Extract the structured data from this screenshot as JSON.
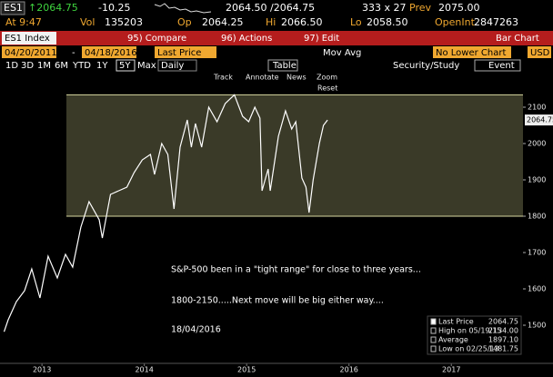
{
  "header": {
    "row1": {
      "ticker": "ES1",
      "last": "↑2064.75",
      "change": "-10.25",
      "bid_ask": "2064.50 /2064.75",
      "size": "333 x 27",
      "prev_label": "Prev",
      "prev": "2075.00"
    },
    "row2": {
      "time": "At 9:47",
      "vol_label": "Vol",
      "vol": "135203",
      "op_label": "Op",
      "op": "2064.25",
      "hi_label": "Hi",
      "hi": "2066.50",
      "lo_label": "Lo",
      "lo": "2058.50",
      "oi_label": "OpenInt",
      "oi": "2847263"
    },
    "menu": {
      "security": "ES1 Index",
      "compare": "95) Compare",
      "actions": "96) Actions",
      "edit": "97) Edit",
      "view": "Bar Chart"
    },
    "controls": {
      "start": "04/20/2011",
      "dash": "-",
      "end": "04/18/2016",
      "field": "Last Price",
      "study": "Mov Avg",
      "lower": "No Lower Chart",
      "currency": "USD"
    },
    "periods": [
      "1D",
      "3D",
      "1M",
      "6M",
      "YTD",
      "1Y",
      "5Y",
      "Max",
      "Daily"
    ],
    "tools": {
      "table": "Table",
      "security_study": "Security/Study",
      "event": "Event"
    },
    "chart_tools": {
      "track": "Track",
      "annotate": "Annotate",
      "news": "News",
      "zoom": "Zoom",
      "reset": "Reset"
    }
  },
  "chart_data": {
    "type": "line",
    "x": [
      2013.13,
      2013.17,
      2013.25,
      2013.33,
      2013.4,
      2013.48,
      2013.56,
      2013.65,
      2013.73,
      2013.8,
      2013.88,
      2013.96,
      2014.06,
      2014.09,
      2014.17,
      2014.25,
      2014.33,
      2014.4,
      2014.48,
      2014.56,
      2014.6,
      2014.67,
      2014.73,
      2014.79,
      2014.85,
      2014.92,
      2014.96,
      2015.0,
      2015.06,
      2015.13,
      2015.21,
      2015.29,
      2015.38,
      2015.46,
      2015.52,
      2015.58,
      2015.63,
      2015.65,
      2015.71,
      2015.73,
      2015.81,
      2015.88,
      2015.94,
      2015.98,
      2016.04,
      2016.08,
      2016.11,
      2016.15,
      2016.21,
      2016.25,
      2016.29
    ],
    "series": [
      {
        "name": "Last Price",
        "color": "#ffffff",
        "values": [
          1482,
          1515,
          1565,
          1595,
          1655,
          1575,
          1690,
          1630,
          1695,
          1660,
          1770,
          1840,
          1790,
          1740,
          1860,
          1870,
          1880,
          1920,
          1955,
          1970,
          1915,
          2000,
          1970,
          1820,
          1990,
          2065,
          1990,
          2055,
          1990,
          2100,
          2060,
          2110,
          2134,
          2075,
          2060,
          2100,
          2070,
          1870,
          1930,
          1870,
          2020,
          2090,
          2040,
          2060,
          1905,
          1880,
          1810,
          1900,
          2000,
          2050,
          2064.75
        ]
      }
    ],
    "last_price": 2064.75,
    "range_box": {
      "high": 2134,
      "low": 1800
    },
    "xlim": [
      2013.09,
      2018.2
    ],
    "xticks": [
      {
        "value": 2013.5,
        "label": "2013"
      },
      {
        "value": 2014.5,
        "label": "2014"
      },
      {
        "value": 2015.5,
        "label": "2015"
      },
      {
        "value": 2016.5,
        "label": "2016"
      },
      {
        "value": 2017.5,
        "label": "2017"
      }
    ],
    "ylim": [
      1395,
      2145
    ],
    "yticks": [
      1500,
      1600,
      1700,
      1800,
      1900,
      2000,
      2100
    ],
    "annotations": [
      "S&P-500 been in a \"tight range\" for close to three years...",
      "1800-2150.....Next move will be big either way....",
      "18/04/2016"
    ],
    "legend": [
      {
        "name": "Last Price",
        "value": "2064.75"
      },
      {
        "name": "High on 05/19/15",
        "value": "2134.00"
      },
      {
        "name": "Average",
        "value": "1897.10"
      },
      {
        "name": "Low on 02/25/13",
        "value": "1481.75"
      }
    ]
  }
}
